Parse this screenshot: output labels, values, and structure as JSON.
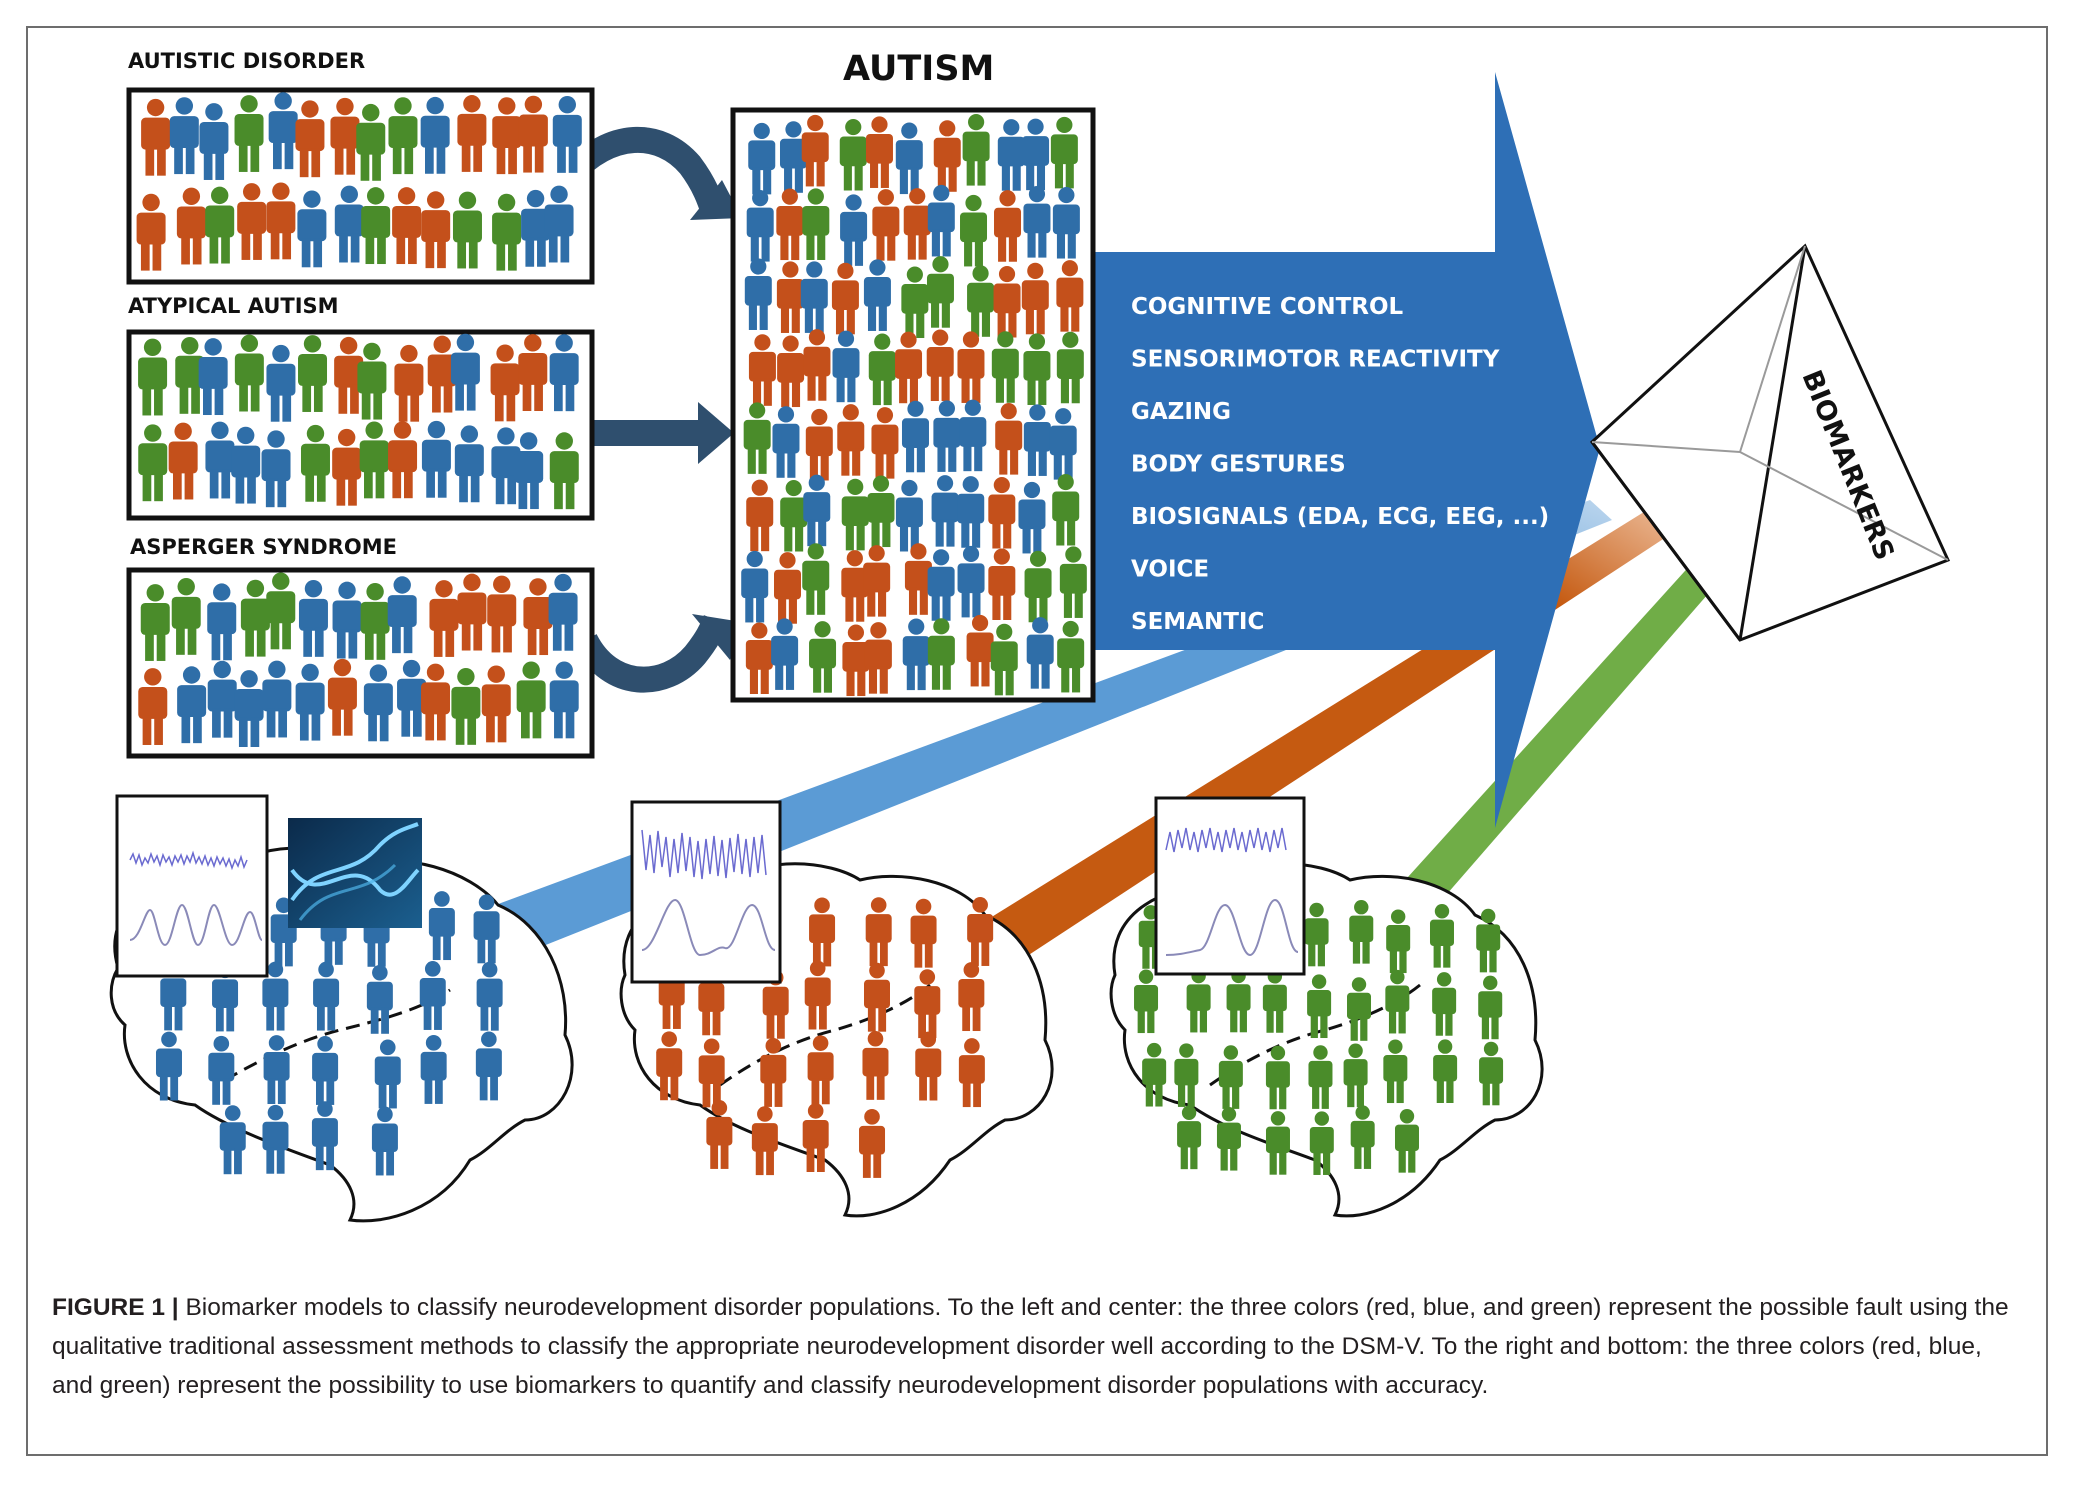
{
  "groups": {
    "autistic_disorder": "AUTISTIC DISORDER",
    "atypical_autism": "ATYPICAL AUTISM",
    "asperger_syndrome": "ASPERGER SYNDROME"
  },
  "autism_title": "AUTISM",
  "arrow_items": [
    "COGNITIVE CONTROL",
    "SENSORIMOTOR REACTIVITY",
    "GAZING",
    "BODY GESTURES",
    "BIOSIGNALS (EDA, ECG, EEG, ...)",
    "VOICE",
    "SEMANTIC"
  ],
  "biomarkers_label": "BIOMARKERS",
  "colors": {
    "red": "#c4501b",
    "blue": "#2f6ea8",
    "green": "#4a8c2a",
    "big_arrow": "#2e6fb6",
    "curved_arrow": "#2f4f6e",
    "band_blue": "#5b9bd5",
    "band_orange": "#c55a11",
    "band_green": "#70ad47"
  },
  "caption": {
    "label": "FIGURE 1 |",
    "text": " Biomarker models to classify neurodevelopment disorder populations. To the left and center: the three colors (red, blue, and green) represent the possible fault using the qualitative traditional assessment methods to classify the appropriate neurodevelopment disorder well according to the DSM-V. To the right and bottom: the three colors (red, blue, and green) represent the possibility to use biomarkers to quantify and classify neurodevelopment disorder populations with accuracy."
  }
}
